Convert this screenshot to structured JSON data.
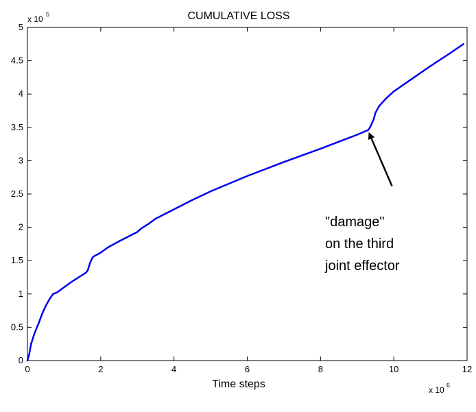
{
  "chart_data": {
    "type": "line",
    "title": "CUMULATIVE LOSS",
    "xlabel": "Time steps",
    "ylabel": "",
    "x_multiplier": {
      "base": "x 10",
      "exponent": "6"
    },
    "y_multiplier": {
      "base": "x 10",
      "exponent": "5"
    },
    "xlim": [
      0,
      12
    ],
    "ylim": [
      0,
      5
    ],
    "xticks": [
      0,
      2,
      4,
      6,
      8,
      10,
      12
    ],
    "yticks": [
      0,
      0.5,
      1,
      1.5,
      2,
      2.5,
      3,
      3.5,
      4,
      4.5,
      5
    ],
    "xtick_labels": [
      "0",
      "2",
      "4",
      "6",
      "8",
      "10",
      "12"
    ],
    "ytick_labels": [
      "0",
      "0.5",
      "1",
      "1.5",
      "2",
      "2.5",
      "3",
      "3.5",
      "4",
      "4.5",
      "5"
    ],
    "grid": false,
    "series": [
      {
        "color": "#0000ee",
        "x": [
          0,
          0.05,
          0.1,
          0.2,
          0.3,
          0.4,
          0.5,
          0.6,
          0.7,
          0.8,
          1.0,
          1.2,
          1.4,
          1.6,
          1.65,
          1.7,
          1.75,
          1.8,
          2.0,
          2.2,
          2.5,
          3.0,
          3.1,
          3.3,
          3.5,
          4.0,
          4.5,
          5.0,
          6.0,
          7.0,
          8.0,
          9.0,
          9.3,
          9.35,
          9.45,
          9.5,
          9.6,
          9.8,
          10.0,
          10.5,
          11.0,
          11.5,
          11.9
        ],
        "y": [
          0,
          0.1,
          0.25,
          0.42,
          0.55,
          0.7,
          0.82,
          0.92,
          1.0,
          1.02,
          1.1,
          1.18,
          1.25,
          1.32,
          1.36,
          1.45,
          1.52,
          1.56,
          1.62,
          1.7,
          1.79,
          1.93,
          1.98,
          2.05,
          2.13,
          2.27,
          2.41,
          2.54,
          2.77,
          2.98,
          3.18,
          3.39,
          3.46,
          3.5,
          3.62,
          3.72,
          3.82,
          3.94,
          4.04,
          4.23,
          4.42,
          4.6,
          4.75
        ]
      }
    ],
    "annotations": [
      {
        "lines": [
          "\"damage\"",
          "on the third",
          "joint effector"
        ],
        "arrow_to": {
          "x": 9.3,
          "y": 3.46
        },
        "arrow_from": {
          "x": 9.95,
          "y": 2.62
        }
      }
    ]
  }
}
